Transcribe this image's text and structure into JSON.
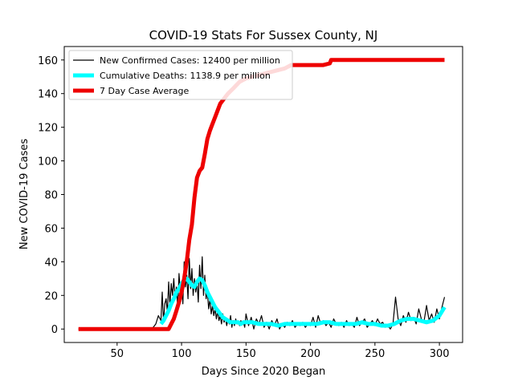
{
  "chart_data": {
    "type": "line",
    "title": "COVID-19 Stats For Sussex County, NJ",
    "xlabel": "Days Since 2020 Began",
    "ylabel": "New COVID-19 Cases",
    "xlim": [
      9,
      318
    ],
    "ylim": [
      -8,
      168
    ],
    "xticks": [
      50,
      100,
      150,
      200,
      250,
      300
    ],
    "yticks": [
      0,
      20,
      40,
      60,
      80,
      100,
      120,
      140,
      160
    ],
    "grid": false,
    "legend_position": "top-left",
    "series": [
      {
        "name": "New Confirmed Cases: 12400 per million",
        "color": "#000000",
        "style": "thin",
        "x": [
          20,
          30,
          40,
          50,
          60,
          70,
          75,
          78,
          80,
          82,
          84,
          85,
          86,
          87,
          88,
          89,
          90,
          91,
          92,
          93,
          94,
          95,
          96,
          97,
          98,
          99,
          100,
          101,
          102,
          103,
          104,
          105,
          106,
          107,
          108,
          109,
          110,
          111,
          112,
          113,
          114,
          115,
          116,
          117,
          118,
          119,
          120,
          121,
          122,
          123,
          124,
          125,
          126,
          127,
          128,
          129,
          130,
          131,
          132,
          133,
          134,
          135,
          136,
          137,
          138,
          139,
          140,
          141,
          142,
          143,
          144,
          145,
          146,
          147,
          148,
          149,
          150,
          152,
          154,
          156,
          158,
          160,
          162,
          164,
          166,
          168,
          170,
          172,
          174,
          176,
          178,
          180,
          182,
          184,
          186,
          188,
          190,
          192,
          194,
          196,
          198,
          200,
          202,
          204,
          206,
          208,
          210,
          212,
          214,
          216,
          218,
          220,
          222,
          224,
          226,
          228,
          230,
          232,
          234,
          236,
          238,
          240,
          242,
          244,
          246,
          248,
          250,
          252,
          254,
          256,
          258,
          260,
          262,
          264,
          266,
          268,
          270,
          272,
          274,
          276,
          278,
          280,
          282,
          284,
          286,
          288,
          290,
          292,
          294,
          296,
          298,
          300,
          302,
          304
        ],
        "y": [
          0,
          0,
          0,
          0,
          0,
          0,
          0,
          1,
          3,
          8,
          5,
          22,
          4,
          15,
          18,
          10,
          28,
          14,
          27,
          20,
          30,
          18,
          25,
          12,
          33,
          22,
          28,
          15,
          40,
          25,
          32,
          18,
          42,
          24,
          36,
          20,
          30,
          22,
          28,
          16,
          38,
          24,
          43,
          20,
          32,
          18,
          22,
          12,
          18,
          9,
          14,
          8,
          12,
          6,
          11,
          5,
          8,
          3,
          9,
          4,
          7,
          2,
          6,
          3,
          8,
          1,
          5,
          2,
          6,
          3,
          4,
          2,
          5,
          3,
          4,
          1,
          9,
          2,
          7,
          0,
          6,
          3,
          8,
          1,
          4,
          0,
          5,
          2,
          6,
          0,
          3,
          1,
          4,
          2,
          5,
          1,
          3,
          2,
          4,
          1,
          3,
          2,
          7,
          1,
          8,
          3,
          5,
          2,
          4,
          1,
          6,
          3,
          2,
          4,
          1,
          5,
          2,
          3,
          1,
          7,
          2,
          4,
          6,
          1,
          3,
          5,
          2,
          6,
          3,
          4,
          1,
          2,
          0,
          3,
          19,
          6,
          2,
          8,
          4,
          10,
          5,
          7,
          3,
          12,
          6,
          4,
          14,
          5,
          9,
          4,
          12,
          6,
          13,
          19
        ]
      },
      {
        "name": "Cumulative Deaths: 1138.9 per million",
        "color": "#00ffff",
        "style": "thick",
        "x": [
          84,
          86,
          88,
          90,
          92,
          94,
          96,
          98,
          100,
          102,
          104,
          106,
          108,
          110,
          112,
          114,
          116,
          118,
          120,
          122,
          124,
          126,
          128,
          130,
          132,
          134,
          136,
          138,
          140,
          142,
          144,
          146,
          148,
          150,
          155,
          160,
          165,
          170,
          175,
          180,
          185,
          190,
          195,
          200,
          205,
          210,
          215,
          220,
          225,
          230,
          235,
          240,
          245,
          250,
          255,
          260,
          265,
          270,
          275,
          280,
          285,
          290,
          295,
          300,
          304
        ],
        "y": [
          3,
          5,
          8,
          11,
          15,
          18,
          22,
          24,
          27,
          29,
          30,
          28,
          26,
          25,
          28,
          30,
          29,
          26,
          22,
          19,
          16,
          13,
          11,
          9,
          7,
          6,
          5,
          4,
          4,
          4,
          4,
          3,
          4,
          4,
          4,
          3,
          3,
          3,
          2,
          3,
          3,
          3,
          3,
          3,
          3,
          4,
          4,
          3,
          3,
          3,
          3,
          4,
          3,
          3,
          2,
          2,
          3,
          5,
          6,
          6,
          5,
          4,
          5,
          8,
          13
        ]
      },
      {
        "name": "7 Day Case Average",
        "color": "#ee0000",
        "style": "thick",
        "x": [
          20,
          50,
          80,
          88,
          90,
          92,
          94,
          96,
          98,
          100,
          102,
          104,
          106,
          108,
          110,
          112,
          114,
          116,
          118,
          120,
          122,
          124,
          126,
          128,
          130,
          132,
          134,
          136,
          140,
          145,
          150,
          155,
          160,
          170,
          180,
          185,
          190,
          195,
          200,
          205,
          210,
          215,
          216,
          220,
          230,
          240,
          250,
          260,
          270,
          280,
          290,
          300,
          304
        ],
        "y": [
          0,
          0,
          0,
          0,
          0,
          3,
          6,
          11,
          16,
          22,
          30,
          40,
          53,
          62,
          78,
          90,
          94,
          96,
          104,
          113,
          118,
          122,
          126,
          130,
          134,
          136,
          138,
          140,
          143,
          147,
          149,
          150,
          151,
          153,
          155,
          157,
          157,
          157,
          157,
          157,
          157,
          158,
          160,
          160,
          160,
          160,
          160,
          160,
          160,
          160,
          160,
          160,
          160
        ]
      }
    ]
  }
}
